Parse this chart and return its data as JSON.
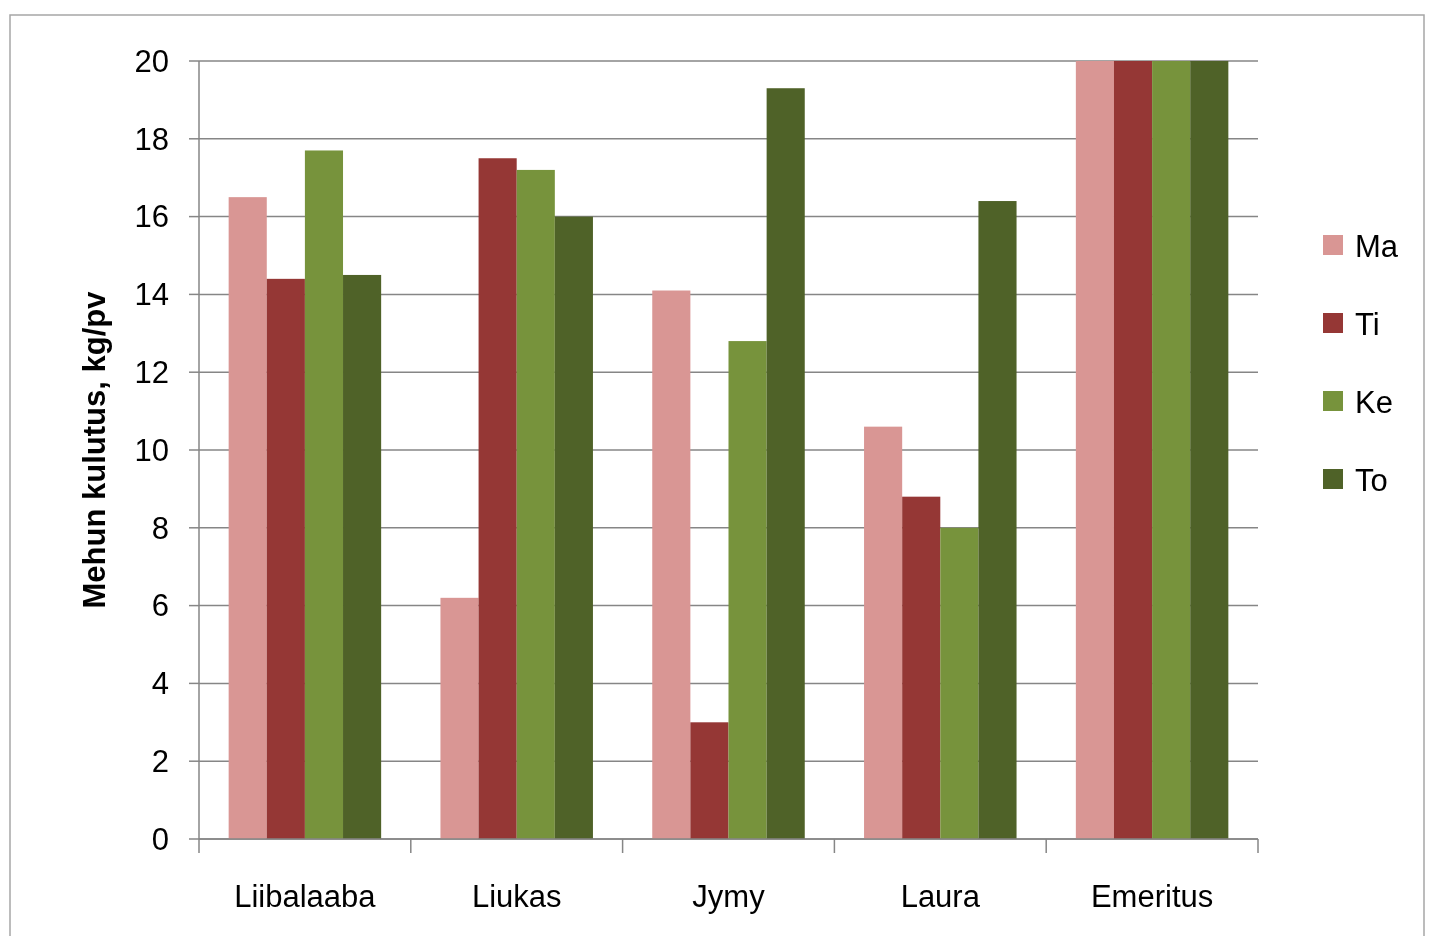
{
  "chart_data": {
    "type": "bar",
    "ylabel": "Mehun kulutus, kg/pv",
    "categories": [
      "Liibalaaba",
      "Liukas",
      "Jymy",
      "Laura",
      "Emeritus"
    ],
    "series": [
      {
        "name": "Ma",
        "color": "#d99694",
        "values": [
          16.5,
          6.2,
          14.1,
          10.6,
          20
        ]
      },
      {
        "name": "Ti",
        "color": "#953735",
        "values": [
          14.4,
          17.5,
          3.0,
          8.8,
          20
        ]
      },
      {
        "name": "Ke",
        "color": "#77933c",
        "values": [
          17.7,
          17.2,
          12.8,
          8.0,
          20
        ]
      },
      {
        "name": "To",
        "color": "#4f6228",
        "values": [
          14.5,
          16.0,
          19.3,
          16.4,
          20
        ]
      }
    ],
    "ylim": [
      0,
      20
    ],
    "yticks": [
      0,
      2,
      4,
      6,
      8,
      10,
      12,
      14,
      16,
      18,
      20
    ],
    "grid": "y",
    "legend": "right"
  }
}
